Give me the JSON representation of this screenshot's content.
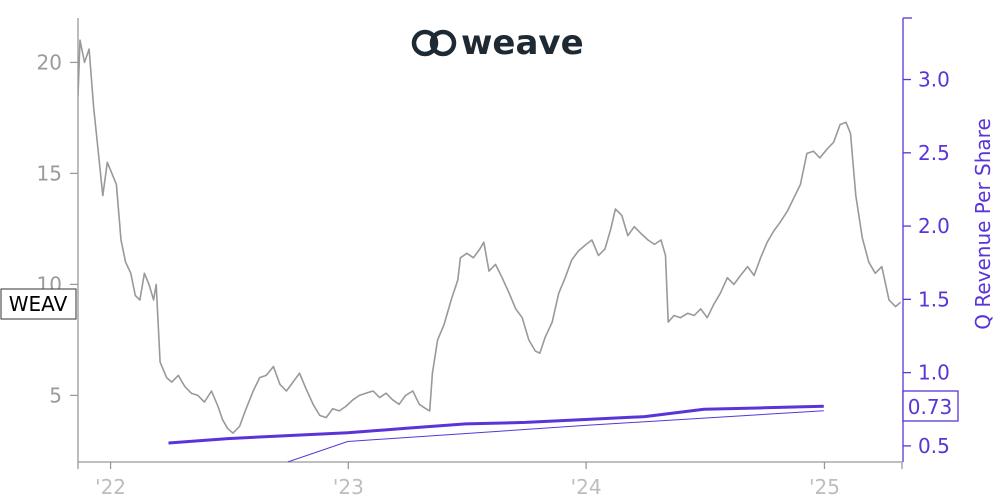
{
  "logo": {
    "text": "weave",
    "color": "#1e2a33"
  },
  "ticker_label": "WEAV",
  "last_value_label": "0.73",
  "colors": {
    "price": "#999999",
    "revenue": "#5b34d8",
    "axis_left": "#9b9b9b",
    "axis_x": "#bdbdbd"
  },
  "chart_data": {
    "type": "line",
    "x_axis": {
      "type": "date",
      "range": [
        "2021-11-12",
        "2025-04-30"
      ],
      "tick_labels": [
        "'22",
        "'23",
        "'24",
        "'25"
      ],
      "tick_dates": [
        "2022-01-01",
        "2023-01-01",
        "2024-01-01",
        "2025-01-01"
      ]
    },
    "y_left": {
      "range": [
        2,
        22
      ],
      "ticks": [
        5,
        10,
        15,
        20
      ]
    },
    "y_right": {
      "range": [
        0.39,
        3.42
      ],
      "ticks": [
        0.5,
        1.0,
        1.5,
        2.0,
        2.5,
        3.0
      ],
      "tick_labels": [
        "0.5",
        "1.0",
        "1.5",
        "2.0",
        "2.5",
        "3.0"
      ],
      "label": "Q Revenue Per Share"
    },
    "series": [
      {
        "name": "WEAV",
        "axis": "left",
        "style": "price",
        "points": [
          [
            "2021-11-12",
            18.5
          ],
          [
            "2021-11-15",
            21.0
          ],
          [
            "2021-11-22",
            20.0
          ],
          [
            "2021-11-29",
            20.6
          ],
          [
            "2021-12-06",
            18.0
          ],
          [
            "2021-12-13",
            16.0
          ],
          [
            "2021-12-20",
            14.0
          ],
          [
            "2021-12-27",
            15.5
          ],
          [
            "2022-01-03",
            15.0
          ],
          [
            "2022-01-10",
            14.5
          ],
          [
            "2022-01-17",
            12.0
          ],
          [
            "2022-01-24",
            11.0
          ],
          [
            "2022-02-01",
            10.5
          ],
          [
            "2022-02-08",
            9.5
          ],
          [
            "2022-02-15",
            9.3
          ],
          [
            "2022-02-22",
            10.5
          ],
          [
            "2022-03-01",
            10.0
          ],
          [
            "2022-03-08",
            9.3
          ],
          [
            "2022-03-12",
            10.0
          ],
          [
            "2022-03-18",
            6.5
          ],
          [
            "2022-03-28",
            5.8
          ],
          [
            "2022-04-05",
            5.6
          ],
          [
            "2022-04-15",
            5.9
          ],
          [
            "2022-04-25",
            5.4
          ],
          [
            "2022-05-05",
            5.1
          ],
          [
            "2022-05-15",
            5.0
          ],
          [
            "2022-05-25",
            4.7
          ],
          [
            "2022-06-05",
            5.2
          ],
          [
            "2022-06-15",
            4.5
          ],
          [
            "2022-06-22",
            3.9
          ],
          [
            "2022-06-30",
            3.5
          ],
          [
            "2022-07-08",
            3.3
          ],
          [
            "2022-07-18",
            3.6
          ],
          [
            "2022-07-28",
            4.4
          ],
          [
            "2022-08-08",
            5.2
          ],
          [
            "2022-08-18",
            5.8
          ],
          [
            "2022-08-28",
            5.9
          ],
          [
            "2022-09-08",
            6.3
          ],
          [
            "2022-09-18",
            5.5
          ],
          [
            "2022-09-28",
            5.2
          ],
          [
            "2022-10-08",
            5.6
          ],
          [
            "2022-10-18",
            6.0
          ],
          [
            "2022-10-28",
            5.3
          ],
          [
            "2022-11-08",
            4.6
          ],
          [
            "2022-11-18",
            4.1
          ],
          [
            "2022-11-28",
            4.0
          ],
          [
            "2022-12-08",
            4.4
          ],
          [
            "2022-12-18",
            4.3
          ],
          [
            "2022-12-28",
            4.5
          ],
          [
            "2023-01-08",
            4.8
          ],
          [
            "2023-01-18",
            5.0
          ],
          [
            "2023-01-28",
            5.1
          ],
          [
            "2023-02-08",
            5.2
          ],
          [
            "2023-02-18",
            4.9
          ],
          [
            "2023-02-28",
            5.1
          ],
          [
            "2023-03-10",
            4.8
          ],
          [
            "2023-03-20",
            4.6
          ],
          [
            "2023-03-30",
            5.0
          ],
          [
            "2023-04-10",
            5.2
          ],
          [
            "2023-04-20",
            4.6
          ],
          [
            "2023-04-30",
            4.4
          ],
          [
            "2023-05-06",
            4.3
          ],
          [
            "2023-05-10",
            6.0
          ],
          [
            "2023-05-18",
            7.5
          ],
          [
            "2023-05-28",
            8.2
          ],
          [
            "2023-06-08",
            9.3
          ],
          [
            "2023-06-18",
            10.2
          ],
          [
            "2023-06-22",
            11.2
          ],
          [
            "2023-07-02",
            11.4
          ],
          [
            "2023-07-12",
            11.2
          ],
          [
            "2023-07-22",
            11.6
          ],
          [
            "2023-07-28",
            11.9
          ],
          [
            "2023-08-05",
            10.6
          ],
          [
            "2023-08-15",
            10.9
          ],
          [
            "2023-08-25",
            10.3
          ],
          [
            "2023-09-05",
            9.6
          ],
          [
            "2023-09-15",
            8.9
          ],
          [
            "2023-09-25",
            8.5
          ],
          [
            "2023-10-05",
            7.5
          ],
          [
            "2023-10-15",
            7.0
          ],
          [
            "2023-10-22",
            6.9
          ],
          [
            "2023-10-30",
            7.6
          ],
          [
            "2023-11-10",
            8.3
          ],
          [
            "2023-11-20",
            9.6
          ],
          [
            "2023-11-30",
            10.3
          ],
          [
            "2023-12-10",
            11.1
          ],
          [
            "2023-12-20",
            11.5
          ],
          [
            "2024-01-01",
            11.8
          ],
          [
            "2024-01-10",
            12.0
          ],
          [
            "2024-01-20",
            11.3
          ],
          [
            "2024-01-30",
            11.6
          ],
          [
            "2024-02-08",
            12.5
          ],
          [
            "2024-02-15",
            13.4
          ],
          [
            "2024-02-25",
            13.1
          ],
          [
            "2024-03-05",
            12.2
          ],
          [
            "2024-03-15",
            12.6
          ],
          [
            "2024-03-25",
            12.3
          ],
          [
            "2024-04-05",
            12.0
          ],
          [
            "2024-04-15",
            11.8
          ],
          [
            "2024-04-25",
            12.0
          ],
          [
            "2024-05-02",
            11.3
          ],
          [
            "2024-05-06",
            8.3
          ],
          [
            "2024-05-15",
            8.6
          ],
          [
            "2024-05-25",
            8.5
          ],
          [
            "2024-06-05",
            8.7
          ],
          [
            "2024-06-15",
            8.6
          ],
          [
            "2024-06-25",
            8.9
          ],
          [
            "2024-07-05",
            8.5
          ],
          [
            "2024-07-15",
            9.1
          ],
          [
            "2024-07-25",
            9.6
          ],
          [
            "2024-08-05",
            10.3
          ],
          [
            "2024-08-15",
            10.0
          ],
          [
            "2024-08-25",
            10.4
          ],
          [
            "2024-09-05",
            10.8
          ],
          [
            "2024-09-15",
            10.4
          ],
          [
            "2024-09-25",
            11.2
          ],
          [
            "2024-10-05",
            11.9
          ],
          [
            "2024-10-15",
            12.4
          ],
          [
            "2024-10-25",
            12.8
          ],
          [
            "2024-11-05",
            13.3
          ],
          [
            "2024-11-15",
            13.9
          ],
          [
            "2024-11-25",
            14.5
          ],
          [
            "2024-12-05",
            15.9
          ],
          [
            "2024-12-15",
            16.0
          ],
          [
            "2024-12-25",
            15.7
          ],
          [
            "2025-01-05",
            16.1
          ],
          [
            "2025-01-15",
            16.4
          ],
          [
            "2025-01-25",
            17.2
          ],
          [
            "2025-02-03",
            17.3
          ],
          [
            "2025-02-10",
            16.8
          ],
          [
            "2025-02-18",
            14.0
          ],
          [
            "2025-02-28",
            12.1
          ],
          [
            "2025-03-10",
            11.0
          ],
          [
            "2025-03-20",
            10.5
          ],
          [
            "2025-03-30",
            10.8
          ],
          [
            "2025-04-10",
            9.3
          ],
          [
            "2025-04-20",
            9.0
          ],
          [
            "2025-04-28",
            9.2
          ]
        ]
      },
      {
        "name": "Q Revenue Per Share",
        "axis": "right",
        "style": "revenue",
        "points": [
          [
            "2022-03-31",
            0.52
          ],
          [
            "2022-06-30",
            0.55
          ],
          [
            "2022-09-30",
            0.57
          ],
          [
            "2022-12-31",
            0.59
          ],
          [
            "2023-03-31",
            0.62
          ],
          [
            "2023-06-30",
            0.65
          ],
          [
            "2023-09-30",
            0.66
          ],
          [
            "2023-12-31",
            0.68
          ],
          [
            "2024-03-31",
            0.7
          ],
          [
            "2024-06-30",
            0.75
          ],
          [
            "2024-09-30",
            0.76
          ],
          [
            "2024-12-31",
            0.77
          ]
        ]
      },
      {
        "name": "",
        "axis": "right",
        "style": "revenue-thin",
        "points": [
          [
            "2022-09-30",
            0.39
          ],
          [
            "2022-12-31",
            0.53
          ],
          [
            "2023-12-31",
            0.64
          ],
          [
            "2024-12-31",
            0.74
          ]
        ]
      }
    ]
  }
}
